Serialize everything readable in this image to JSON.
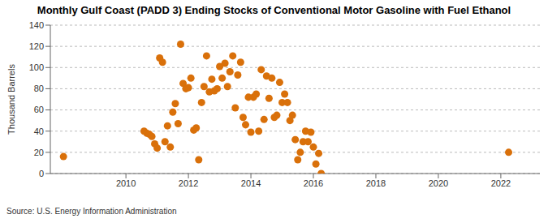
{
  "chart_data": {
    "type": "scatter",
    "title": "Monthly Gulf Coast (PADD 3) Ending Stocks of Conventional Motor Gasoline with Fuel Ethanol",
    "y_label": "Thousand Barrels",
    "source": "Source: U.S. Energy Information Administration",
    "color": "#d9700a",
    "marker": "circle",
    "grid": true,
    "xlim": [
      2007.58,
      2023.25
    ],
    "xticks": [
      2010,
      2012,
      2014,
      2016,
      2018,
      2020,
      2022
    ],
    "ylim": [
      0,
      140
    ],
    "yticks": [
      0,
      20,
      40,
      60,
      80,
      100,
      120,
      140
    ],
    "x": [
      2008.0,
      2010.58,
      2010.67,
      2010.75,
      2010.83,
      2010.92,
      2011.0,
      2011.08,
      2011.17,
      2011.25,
      2011.33,
      2011.42,
      2011.5,
      2011.58,
      2011.67,
      2011.75,
      2011.83,
      2011.92,
      2012.0,
      2012.08,
      2012.17,
      2012.25,
      2012.33,
      2012.42,
      2012.5,
      2012.58,
      2012.67,
      2012.75,
      2012.83,
      2012.92,
      2013.0,
      2013.08,
      2013.17,
      2013.25,
      2013.33,
      2013.42,
      2013.5,
      2013.58,
      2013.67,
      2013.75,
      2013.83,
      2013.92,
      2014.0,
      2014.08,
      2014.17,
      2014.25,
      2014.33,
      2014.42,
      2014.5,
      2014.58,
      2014.67,
      2014.75,
      2014.83,
      2014.92,
      2015.0,
      2015.08,
      2015.17,
      2015.25,
      2015.33,
      2015.42,
      2015.5,
      2015.58,
      2015.67,
      2015.75,
      2015.83,
      2015.92,
      2016.0,
      2016.08,
      2016.17,
      2016.25,
      2022.25
    ],
    "values": [
      16,
      40,
      38,
      37,
      35,
      28,
      24,
      109,
      105,
      30,
      45,
      25,
      58,
      66,
      47,
      122,
      85,
      80,
      81,
      90,
      41,
      43,
      13,
      67,
      82,
      111,
      77,
      89,
      78,
      80,
      101,
      90,
      104,
      82,
      96,
      111,
      62,
      93,
      105,
      53,
      46,
      72,
      39,
      72,
      75,
      40,
      98,
      51,
      92,
      71,
      90,
      53,
      55,
      86,
      67,
      75,
      67,
      50,
      55,
      32,
      13,
      20,
      30,
      40,
      30,
      39,
      25,
      9,
      19,
      0,
      20
    ]
  }
}
